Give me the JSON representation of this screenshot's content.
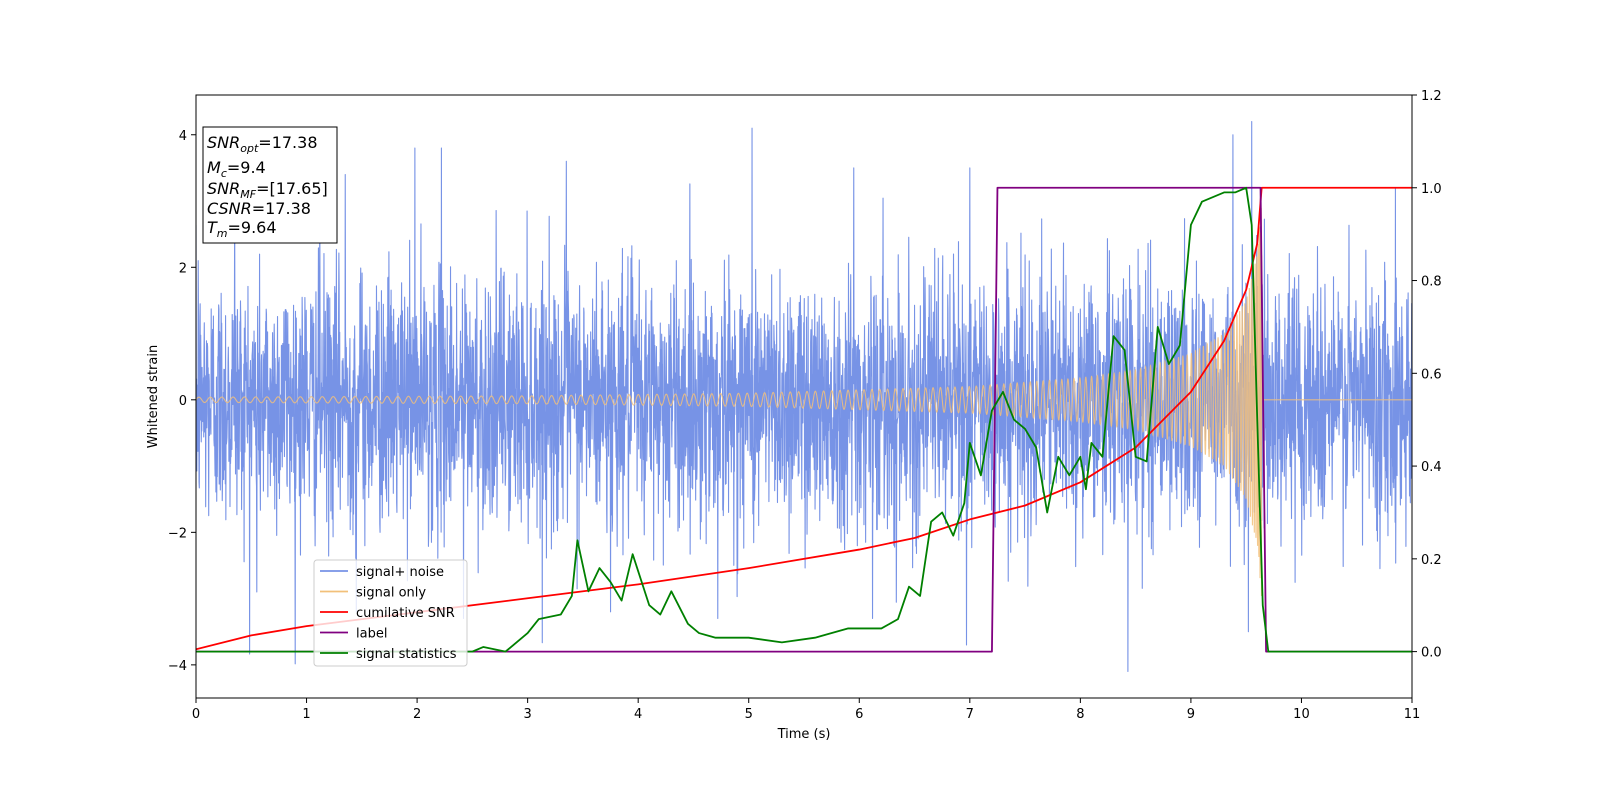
{
  "chart_data": {
    "type": "line",
    "xlabel": "Time (s)",
    "ylabel": "Whitened strain",
    "xlim": [
      0,
      11
    ],
    "ylim": [
      -4.5,
      4.6
    ],
    "y2lim": [
      -0.1,
      1.2
    ],
    "x_ticks": [
      "0",
      "1",
      "2",
      "3",
      "4",
      "5",
      "6",
      "7",
      "8",
      "9",
      "10",
      "11"
    ],
    "y_ticks": [
      "−4",
      "−2",
      "0",
      "2",
      "4"
    ],
    "y2_ticks": [
      "0.0",
      "0.2",
      "0.4",
      "0.6",
      "0.8",
      "1.0",
      "1.2"
    ],
    "legend_position": "lower-left",
    "grid": false,
    "info_box": {
      "lines": [
        {
          "sym": "SNR",
          "sub": "opt",
          "text": "=17.38"
        },
        {
          "sym": "M",
          "sub": "c",
          "text": "=9.4"
        },
        {
          "sym": "SNR",
          "sub": "MF",
          "text": "=[17.65]"
        },
        {
          "sym": "CSNR",
          "sub": "",
          "text": "=17.38"
        },
        {
          "sym": "T",
          "sub": "m",
          "text": "=9.64"
        }
      ]
    },
    "series": [
      {
        "name": "signal+ noise",
        "color": "#7793e6",
        "axis": "left",
        "kind": "noise",
        "sigma": 0.95,
        "spike_peaks": [
          [
            0.02,
            2.1
          ],
          [
            0.35,
            3.2
          ],
          [
            0.55,
            -2.9
          ],
          [
            1.12,
            2.9
          ],
          [
            1.35,
            3.4
          ],
          [
            1.45,
            -3.2
          ],
          [
            1.98,
            3.8
          ],
          [
            2.22,
            3.8
          ],
          [
            2.42,
            -3.3
          ],
          [
            3.35,
            3.6
          ],
          [
            3.75,
            -3.2
          ],
          [
            4.72,
            -3.3
          ],
          [
            5.03,
            4.1
          ],
          [
            5.95,
            3.5
          ],
          [
            6.12,
            -3.3
          ],
          [
            7.0,
            3.5
          ],
          [
            6.97,
            -3.7
          ],
          [
            8.43,
            -4.1
          ],
          [
            9.38,
            4.0
          ],
          [
            9.55,
            4.2
          ],
          [
            9.52,
            -3.5
          ],
          [
            10.85,
            3.2
          ]
        ]
      },
      {
        "name": "signal only",
        "color": "#f2c07a",
        "axis": "left",
        "kind": "chirp",
        "merger_time": 9.64,
        "amplitude_points": [
          [
            0,
            0.04
          ],
          [
            3,
            0.06
          ],
          [
            5,
            0.1
          ],
          [
            7,
            0.2
          ],
          [
            8,
            0.33
          ],
          [
            8.5,
            0.45
          ],
          [
            9,
            0.7
          ],
          [
            9.3,
            1.0
          ],
          [
            9.5,
            1.5
          ],
          [
            9.6,
            2.2
          ],
          [
            9.64,
            3.0
          ]
        ]
      },
      {
        "name": "cumilative SNR",
        "color": "#ff0000",
        "axis": "right",
        "kind": "curve",
        "points": [
          [
            0,
            0.005
          ],
          [
            0.5,
            0.035
          ],
          [
            1,
            0.055
          ],
          [
            2,
            0.085
          ],
          [
            3,
            0.115
          ],
          [
            4,
            0.145
          ],
          [
            5,
            0.18
          ],
          [
            6,
            0.22
          ],
          [
            6.5,
            0.245
          ],
          [
            7,
            0.285
          ],
          [
            7.5,
            0.315
          ],
          [
            8,
            0.365
          ],
          [
            8.5,
            0.44
          ],
          [
            9,
            0.56
          ],
          [
            9.3,
            0.67
          ],
          [
            9.5,
            0.78
          ],
          [
            9.6,
            0.88
          ],
          [
            9.64,
            1.0
          ],
          [
            11,
            1.0
          ]
        ]
      },
      {
        "name": "label",
        "color": "#800080",
        "axis": "right",
        "kind": "curve",
        "points": [
          [
            0,
            0.0
          ],
          [
            7.2,
            0.0
          ],
          [
            7.25,
            1.0
          ],
          [
            9.63,
            1.0
          ],
          [
            9.68,
            0.0
          ],
          [
            11,
            0.0
          ]
        ]
      },
      {
        "name": "signal statistics",
        "color": "#008000",
        "axis": "right",
        "kind": "curve",
        "points": [
          [
            0,
            0.0
          ],
          [
            0.5,
            0.0
          ],
          [
            1,
            0.0
          ],
          [
            1.5,
            0.0
          ],
          [
            2,
            0.0
          ],
          [
            2.5,
            0.0
          ],
          [
            2.6,
            0.01
          ],
          [
            2.8,
            0.0
          ],
          [
            3.0,
            0.04
          ],
          [
            3.1,
            0.07
          ],
          [
            3.3,
            0.08
          ],
          [
            3.4,
            0.12
          ],
          [
            3.45,
            0.24
          ],
          [
            3.55,
            0.13
          ],
          [
            3.65,
            0.18
          ],
          [
            3.75,
            0.15
          ],
          [
            3.85,
            0.11
          ],
          [
            3.95,
            0.21
          ],
          [
            4.1,
            0.1
          ],
          [
            4.2,
            0.08
          ],
          [
            4.3,
            0.13
          ],
          [
            4.45,
            0.06
          ],
          [
            4.55,
            0.04
          ],
          [
            4.7,
            0.03
          ],
          [
            5.0,
            0.03
          ],
          [
            5.3,
            0.02
          ],
          [
            5.6,
            0.03
          ],
          [
            5.9,
            0.05
          ],
          [
            6.2,
            0.05
          ],
          [
            6.35,
            0.07
          ],
          [
            6.45,
            0.14
          ],
          [
            6.55,
            0.12
          ],
          [
            6.65,
            0.28
          ],
          [
            6.75,
            0.3
          ],
          [
            6.85,
            0.25
          ],
          [
            6.95,
            0.32
          ],
          [
            7.0,
            0.45
          ],
          [
            7.1,
            0.38
          ],
          [
            7.2,
            0.52
          ],
          [
            7.3,
            0.56
          ],
          [
            7.4,
            0.5
          ],
          [
            7.5,
            0.48
          ],
          [
            7.6,
            0.44
          ],
          [
            7.7,
            0.3
          ],
          [
            7.8,
            0.42
          ],
          [
            7.9,
            0.38
          ],
          [
            8.0,
            0.42
          ],
          [
            8.05,
            0.35
          ],
          [
            8.1,
            0.45
          ],
          [
            8.2,
            0.42
          ],
          [
            8.3,
            0.68
          ],
          [
            8.4,
            0.65
          ],
          [
            8.5,
            0.42
          ],
          [
            8.6,
            0.41
          ],
          [
            8.7,
            0.7
          ],
          [
            8.8,
            0.62
          ],
          [
            8.9,
            0.66
          ],
          [
            9.0,
            0.92
          ],
          [
            9.1,
            0.97
          ],
          [
            9.2,
            0.98
          ],
          [
            9.3,
            0.99
          ],
          [
            9.4,
            0.99
          ],
          [
            9.5,
            1.0
          ],
          [
            9.55,
            0.92
          ],
          [
            9.6,
            0.5
          ],
          [
            9.65,
            0.1
          ],
          [
            9.7,
            0.0
          ],
          [
            11,
            0.0
          ]
        ]
      }
    ]
  }
}
